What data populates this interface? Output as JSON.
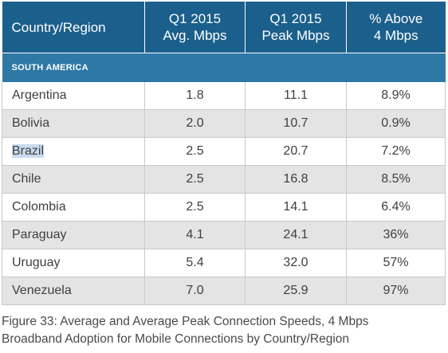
{
  "table": {
    "headers": [
      {
        "line1": "Country/Region",
        "line2": ""
      },
      {
        "line1": "Q1 2015",
        "line2": "Avg. Mbps"
      },
      {
        "line1": "Q1 2015",
        "line2": "Peak Mbps"
      },
      {
        "line1": "% Above",
        "line2": "4 Mbps"
      }
    ],
    "section_label": "SOUTH AMERICA",
    "rows": [
      {
        "country": "Argentina",
        "avg": "1.8",
        "peak": "11.1",
        "above": "8.9%"
      },
      {
        "country": "Bolivia",
        "avg": "2.0",
        "peak": "10.7",
        "above": "0.9%"
      },
      {
        "country": "Brazil",
        "avg": "2.5",
        "peak": "20.7",
        "above": "7.2%"
      },
      {
        "country": "Chile",
        "avg": "2.5",
        "peak": "16.8",
        "above": "8.5%"
      },
      {
        "country": "Colombia",
        "avg": "2.5",
        "peak": "14.1",
        "above": "6.4%"
      },
      {
        "country": "Paraguay",
        "avg": "4.1",
        "peak": "24.1",
        "above": "36%"
      },
      {
        "country": "Uruguay",
        "avg": "5.4",
        "peak": "32.0",
        "above": "57%"
      },
      {
        "country": "Venezuela",
        "avg": "7.0",
        "peak": "25.9",
        "above": "97%"
      }
    ],
    "highlighted_country": "Brazil"
  },
  "caption": {
    "line1": "Figure 33: Average and Average Peak Connection Speeds, 4 Mbps",
    "line2": "Broadband Adoption for Mobile Connections by Country/Region"
  },
  "colors": {
    "header_bg": "#1b5f8c",
    "section_bg": "#2e78a6",
    "alt_row_bg": "#e4e4e4",
    "selection_highlight": "#c8dcef"
  }
}
